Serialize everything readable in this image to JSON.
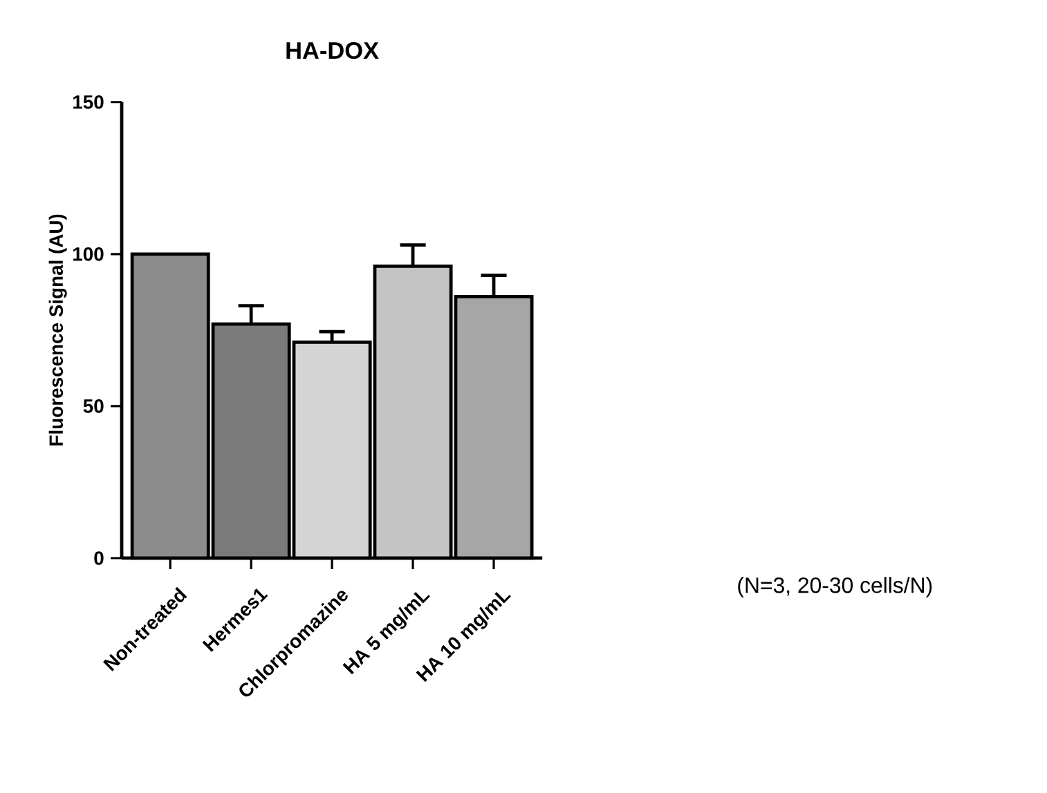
{
  "chart_data": {
    "type": "bar",
    "title": "HA-DOX",
    "ylabel": "Fluorescence Signal (AU)",
    "categories": [
      "Non-treated",
      "Hermes1",
      "Chlorpromazine",
      "HA 5 mg/mL",
      "HA 10 mg/mL"
    ],
    "values": [
      100,
      77,
      71,
      96,
      86
    ],
    "errors": [
      null,
      6,
      3.5,
      7,
      7
    ],
    "colors": [
      "#8c8c8c",
      "#7a7a7a",
      "#d4d4d4",
      "#c4c4c4",
      "#a6a6a6"
    ],
    "ylim": [
      0,
      150
    ],
    "yticks": [
      0,
      50,
      100,
      150
    ],
    "annotations": [
      "(N=3, 20-30 cells/N)"
    ]
  }
}
